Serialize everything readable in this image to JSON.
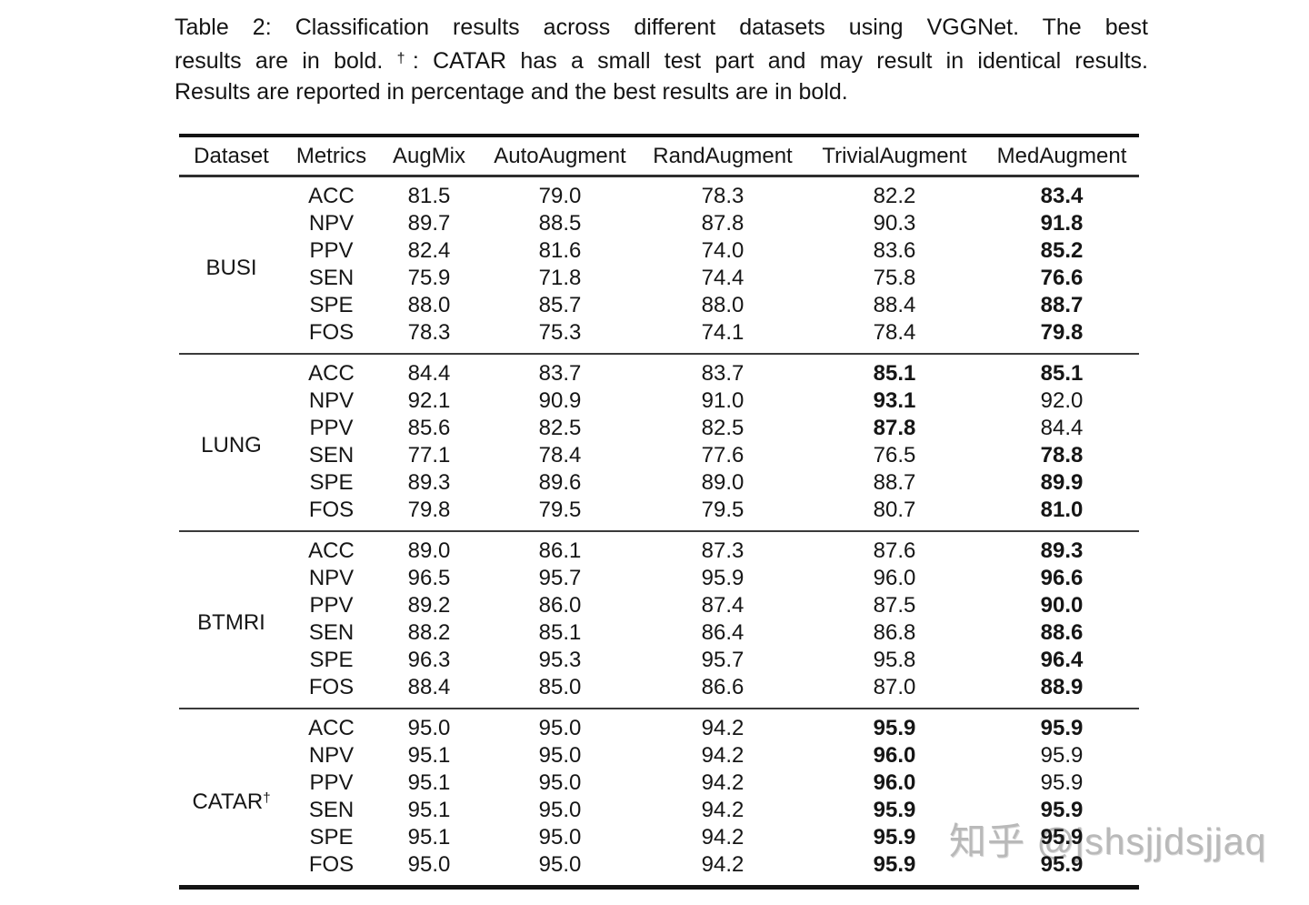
{
  "caption": {
    "lines": [
      {
        "pre": "Table 2:  Classification results across different datasets using VGGNet.  The best",
        "sup": "",
        "post": ""
      },
      {
        "pre": "results are in bold. ",
        "sup": "†",
        "post": ": CATAR has a small test part and may result in identical results."
      },
      {
        "pre": "Results are reported in percentage and the best results are in bold.",
        "sup": "",
        "post": ""
      }
    ]
  },
  "watermark": {
    "text": "知乎 @jshsjjdsjjaq",
    "color": "#b9b9b9"
  },
  "chart_data": {
    "type": "table",
    "title": "Table 2: Classification results across different datasets using VGGNet",
    "columns": [
      "Dataset",
      "Metrics",
      "AugMix",
      "AutoAugment",
      "RandAugment",
      "TrivialAugment",
      "MedAugment"
    ],
    "groups": [
      {
        "dataset": "BUSI",
        "dagger": "",
        "rows": [
          {
            "metric": "ACC",
            "values": [
              "81.5",
              "79.0",
              "78.3",
              "82.2",
              "83.4"
            ],
            "bold": [
              false,
              false,
              false,
              false,
              true
            ]
          },
          {
            "metric": "NPV",
            "values": [
              "89.7",
              "88.5",
              "87.8",
              "90.3",
              "91.8"
            ],
            "bold": [
              false,
              false,
              false,
              false,
              true
            ]
          },
          {
            "metric": "PPV",
            "values": [
              "82.4",
              "81.6",
              "74.0",
              "83.6",
              "85.2"
            ],
            "bold": [
              false,
              false,
              false,
              false,
              true
            ]
          },
          {
            "metric": "SEN",
            "values": [
              "75.9",
              "71.8",
              "74.4",
              "75.8",
              "76.6"
            ],
            "bold": [
              false,
              false,
              false,
              false,
              true
            ]
          },
          {
            "metric": "SPE",
            "values": [
              "88.0",
              "85.7",
              "88.0",
              "88.4",
              "88.7"
            ],
            "bold": [
              false,
              false,
              false,
              false,
              true
            ]
          },
          {
            "metric": "FOS",
            "values": [
              "78.3",
              "75.3",
              "74.1",
              "78.4",
              "79.8"
            ],
            "bold": [
              false,
              false,
              false,
              false,
              true
            ]
          }
        ]
      },
      {
        "dataset": "LUNG",
        "dagger": "",
        "rows": [
          {
            "metric": "ACC",
            "values": [
              "84.4",
              "83.7",
              "83.7",
              "85.1",
              "85.1"
            ],
            "bold": [
              false,
              false,
              false,
              true,
              true
            ]
          },
          {
            "metric": "NPV",
            "values": [
              "92.1",
              "90.9",
              "91.0",
              "93.1",
              "92.0"
            ],
            "bold": [
              false,
              false,
              false,
              true,
              false
            ]
          },
          {
            "metric": "PPV",
            "values": [
              "85.6",
              "82.5",
              "82.5",
              "87.8",
              "84.4"
            ],
            "bold": [
              false,
              false,
              false,
              true,
              false
            ]
          },
          {
            "metric": "SEN",
            "values": [
              "77.1",
              "78.4",
              "77.6",
              "76.5",
              "78.8"
            ],
            "bold": [
              false,
              false,
              false,
              false,
              true
            ]
          },
          {
            "metric": "SPE",
            "values": [
              "89.3",
              "89.6",
              "89.0",
              "88.7",
              "89.9"
            ],
            "bold": [
              false,
              false,
              false,
              false,
              true
            ]
          },
          {
            "metric": "FOS",
            "values": [
              "79.8",
              "79.5",
              "79.5",
              "80.7",
              "81.0"
            ],
            "bold": [
              false,
              false,
              false,
              false,
              true
            ]
          }
        ]
      },
      {
        "dataset": "BTMRI",
        "dagger": "",
        "rows": [
          {
            "metric": "ACC",
            "values": [
              "89.0",
              "86.1",
              "87.3",
              "87.6",
              "89.3"
            ],
            "bold": [
              false,
              false,
              false,
              false,
              true
            ]
          },
          {
            "metric": "NPV",
            "values": [
              "96.5",
              "95.7",
              "95.9",
              "96.0",
              "96.6"
            ],
            "bold": [
              false,
              false,
              false,
              false,
              true
            ]
          },
          {
            "metric": "PPV",
            "values": [
              "89.2",
              "86.0",
              "87.4",
              "87.5",
              "90.0"
            ],
            "bold": [
              false,
              false,
              false,
              false,
              true
            ]
          },
          {
            "metric": "SEN",
            "values": [
              "88.2",
              "85.1",
              "86.4",
              "86.8",
              "88.6"
            ],
            "bold": [
              false,
              false,
              false,
              false,
              true
            ]
          },
          {
            "metric": "SPE",
            "values": [
              "96.3",
              "95.3",
              "95.7",
              "95.8",
              "96.4"
            ],
            "bold": [
              false,
              false,
              false,
              false,
              true
            ]
          },
          {
            "metric": "FOS",
            "values": [
              "88.4",
              "85.0",
              "86.6",
              "87.0",
              "88.9"
            ],
            "bold": [
              false,
              false,
              false,
              false,
              true
            ]
          }
        ]
      },
      {
        "dataset": "CATAR",
        "dagger": "†",
        "rows": [
          {
            "metric": "ACC",
            "values": [
              "95.0",
              "95.0",
              "94.2",
              "95.9",
              "95.9"
            ],
            "bold": [
              false,
              false,
              false,
              true,
              true
            ]
          },
          {
            "metric": "NPV",
            "values": [
              "95.1",
              "95.0",
              "94.2",
              "96.0",
              "95.9"
            ],
            "bold": [
              false,
              false,
              false,
              true,
              false
            ]
          },
          {
            "metric": "PPV",
            "values": [
              "95.1",
              "95.0",
              "94.2",
              "96.0",
              "95.9"
            ],
            "bold": [
              false,
              false,
              false,
              true,
              false
            ]
          },
          {
            "metric": "SEN",
            "values": [
              "95.1",
              "95.0",
              "94.2",
              "95.9",
              "95.9"
            ],
            "bold": [
              false,
              false,
              false,
              true,
              true
            ]
          },
          {
            "metric": "SPE",
            "values": [
              "95.1",
              "95.0",
              "94.2",
              "95.9",
              "95.9"
            ],
            "bold": [
              false,
              false,
              false,
              true,
              true
            ]
          },
          {
            "metric": "FOS",
            "values": [
              "95.0",
              "95.0",
              "94.2",
              "95.9",
              "95.9"
            ],
            "bold": [
              false,
              false,
              false,
              true,
              true
            ]
          }
        ]
      }
    ]
  }
}
